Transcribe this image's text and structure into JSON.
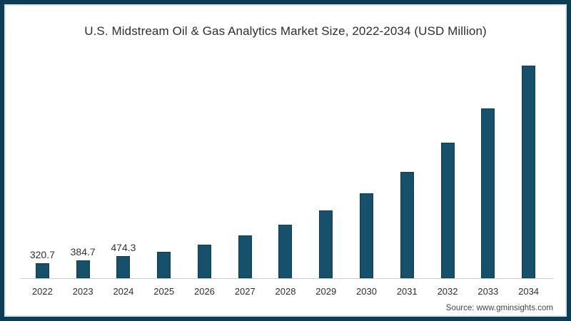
{
  "title": "U.S. Midstream Oil & Gas Analytics Market Size, 2022-2034 (USD Million)",
  "source": "Source: www.gminsights.com",
  "colors": {
    "bar_fill": "#16506a",
    "bar_edge": "#0e3c52",
    "frame_border": "#0d3d54",
    "frame_inner_line": "#d2e7ec",
    "axis_line": "#cccccc",
    "text": "#2e2e2e"
  },
  "chart_data": {
    "type": "bar",
    "title": "U.S. Midstream Oil & Gas Analytics Market Size, 2022-2034 (USD Million)",
    "categories": [
      "2022",
      "2023",
      "2024",
      "2025",
      "2026",
      "2027",
      "2028",
      "2029",
      "2030",
      "2031",
      "2032",
      "2033",
      "2034"
    ],
    "values": [
      320.7,
      384.7,
      474.3,
      570,
      720,
      920,
      1150,
      1460,
      1830,
      2300,
      2920,
      3660,
      4590
    ],
    "value_labels": [
      "320.7",
      "384.7",
      "474.3",
      "",
      "",
      "",
      "",
      "",
      "",
      "",
      "",
      "",
      ""
    ],
    "xlabel": "",
    "ylabel": "",
    "ylim": [
      0,
      4600
    ],
    "grid": false,
    "legend": "none",
    "y_axis_shown": false
  }
}
